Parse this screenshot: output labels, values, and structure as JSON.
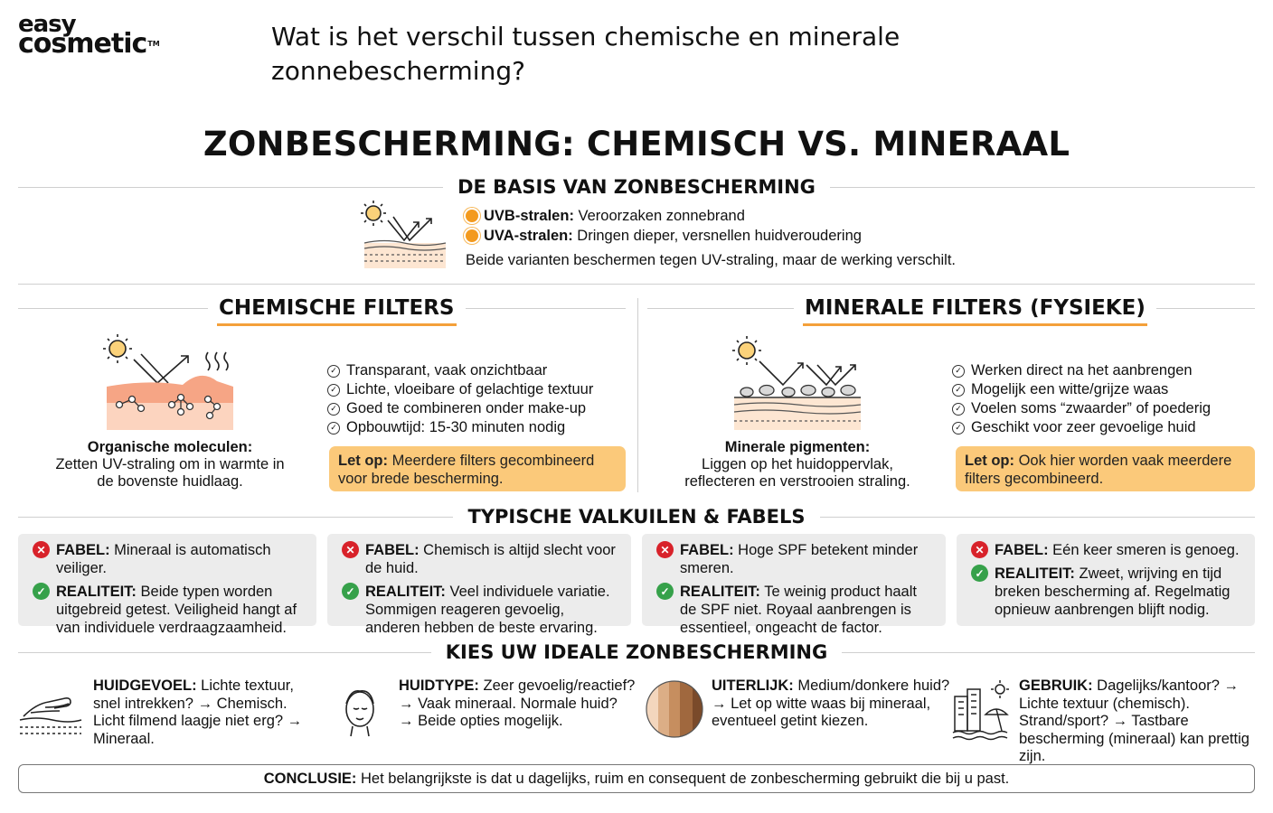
{
  "brand": {
    "line1": "easy",
    "line2": "cosmetic",
    "tm": "TM"
  },
  "question": "Wat is het verschil tussen chemische en minerale zonnebescherming?",
  "main_title": "ZONBESCHERMING: CHEMISCH VS. MINERAAL",
  "basis": {
    "heading": "DE BASIS VAN ZONBESCHERMING",
    "items": [
      {
        "label": "UVB-stralen:",
        "text": " Veroorzaken zonnebrand"
      },
      {
        "label": "UVA-stralen:",
        "text": " Dringen dieper, versnellen huidveroudering"
      }
    ],
    "note": "Beide varianten beschermen tegen UV-straling, maar de werking verschilt."
  },
  "chemical": {
    "heading": "CHEMISCHE FILTERS",
    "caption_title": "Organische moleculen:",
    "caption_text": "Zetten UV-straling om in warmte in de bovenste huidlaag.",
    "checks": [
      "Transparant, vaak onzichtbaar",
      "Lichte, vloeibare of gelachtige textuur",
      "Goed te combineren onder make-up",
      "Opbouwtijd: 15-30 minuten nodig"
    ],
    "note_label": "Let op:",
    "note_text": " Meerdere filters gecombineerd voor brede bescherming."
  },
  "mineral": {
    "heading": "MINERALE FILTERS (FYSIEKE)",
    "caption_title": "Minerale pigmenten:",
    "caption_text": "Liggen op het huidoppervlak, reflecteren en verstrooien straling.",
    "checks": [
      "Werken direct na het aanbrengen",
      "Mogelijk een witte/grijze waas",
      "Voelen soms “zwaarder” of poederig",
      "Geschikt voor zeer gevoelige huid"
    ],
    "note_label": "Let op:",
    "note_text": " Ook hier worden vaak meerdere filters gecombineerd."
  },
  "myths": {
    "heading": "TYPISCHE VALKUILEN & FABELS",
    "myth_label": "FABEL:",
    "reality_label": "REALITEIT:",
    "cards": [
      {
        "myth": " Mineraal is automatisch veiliger.",
        "reality": " Beide typen worden uitgebreid getest. Veiligheid hangt af van individuele verdraagzaamheid."
      },
      {
        "myth": " Chemisch is altijd slecht voor de huid.",
        "reality": " Veel individuele variatie. Sommigen reageren gevoelig, anderen hebben de beste ervaring."
      },
      {
        "myth": " Hoge SPF betekent minder smeren.",
        "reality": " Te weinig product haalt de SPF niet. Royaal aanbrengen is essentieel, ongeacht de factor."
      },
      {
        "myth": " Eén keer smeren is genoeg.",
        "reality": " Zweet, wrijving en tijd breken bescherming af. Regelmatig opnieuw aanbrengen blijft nodig."
      }
    ]
  },
  "choose": {
    "heading": "KIES UW IDEALE ZONBESCHERMING",
    "items": [
      {
        "label": "HUIDGEVOEL:",
        "text": " Lichte textuur, snel intrekken? → Chemisch. Licht filmend laagje niet erg? → Mineraal."
      },
      {
        "label": "HUIDTYPE:",
        "text": " Zeer gevoelig/reactief? → Vaak mineraal. Normale huid? → Beide opties mogelijk."
      },
      {
        "label": "UITERLIJK:",
        "text": " Medium/donkere huid? → Let op witte waas bij mineraal, eventueel getint kiezen."
      },
      {
        "label": "GEBRUIK:",
        "text": " Dagelijks/kantoor? → Lichte textuur (chemisch). Strand/sport? → Tastbare bescherming (mineraal) kan prettig zijn."
      }
    ]
  },
  "conclusion": {
    "label": "CONCLUSIE:",
    "text": " Het belangrijkste is dat u dagelijks, ruim en consequent de zonbescherming gebruikt die bij u past."
  },
  "colors": {
    "accent_orange": "#f4a03a",
    "note_bg": "#fbc97a",
    "card_bg": "#ececec",
    "myth_red": "#d8222a",
    "reality_green": "#36a14a"
  },
  "icons": {
    "sun": "sun-icon",
    "check": "check-circle-icon",
    "cross": "x-circle-icon",
    "skin_feel": "hand-on-skin-icon",
    "face": "face-icon",
    "skin_tones": "skin-tone-swatch-icon",
    "city_beach": "city-beach-icon"
  }
}
